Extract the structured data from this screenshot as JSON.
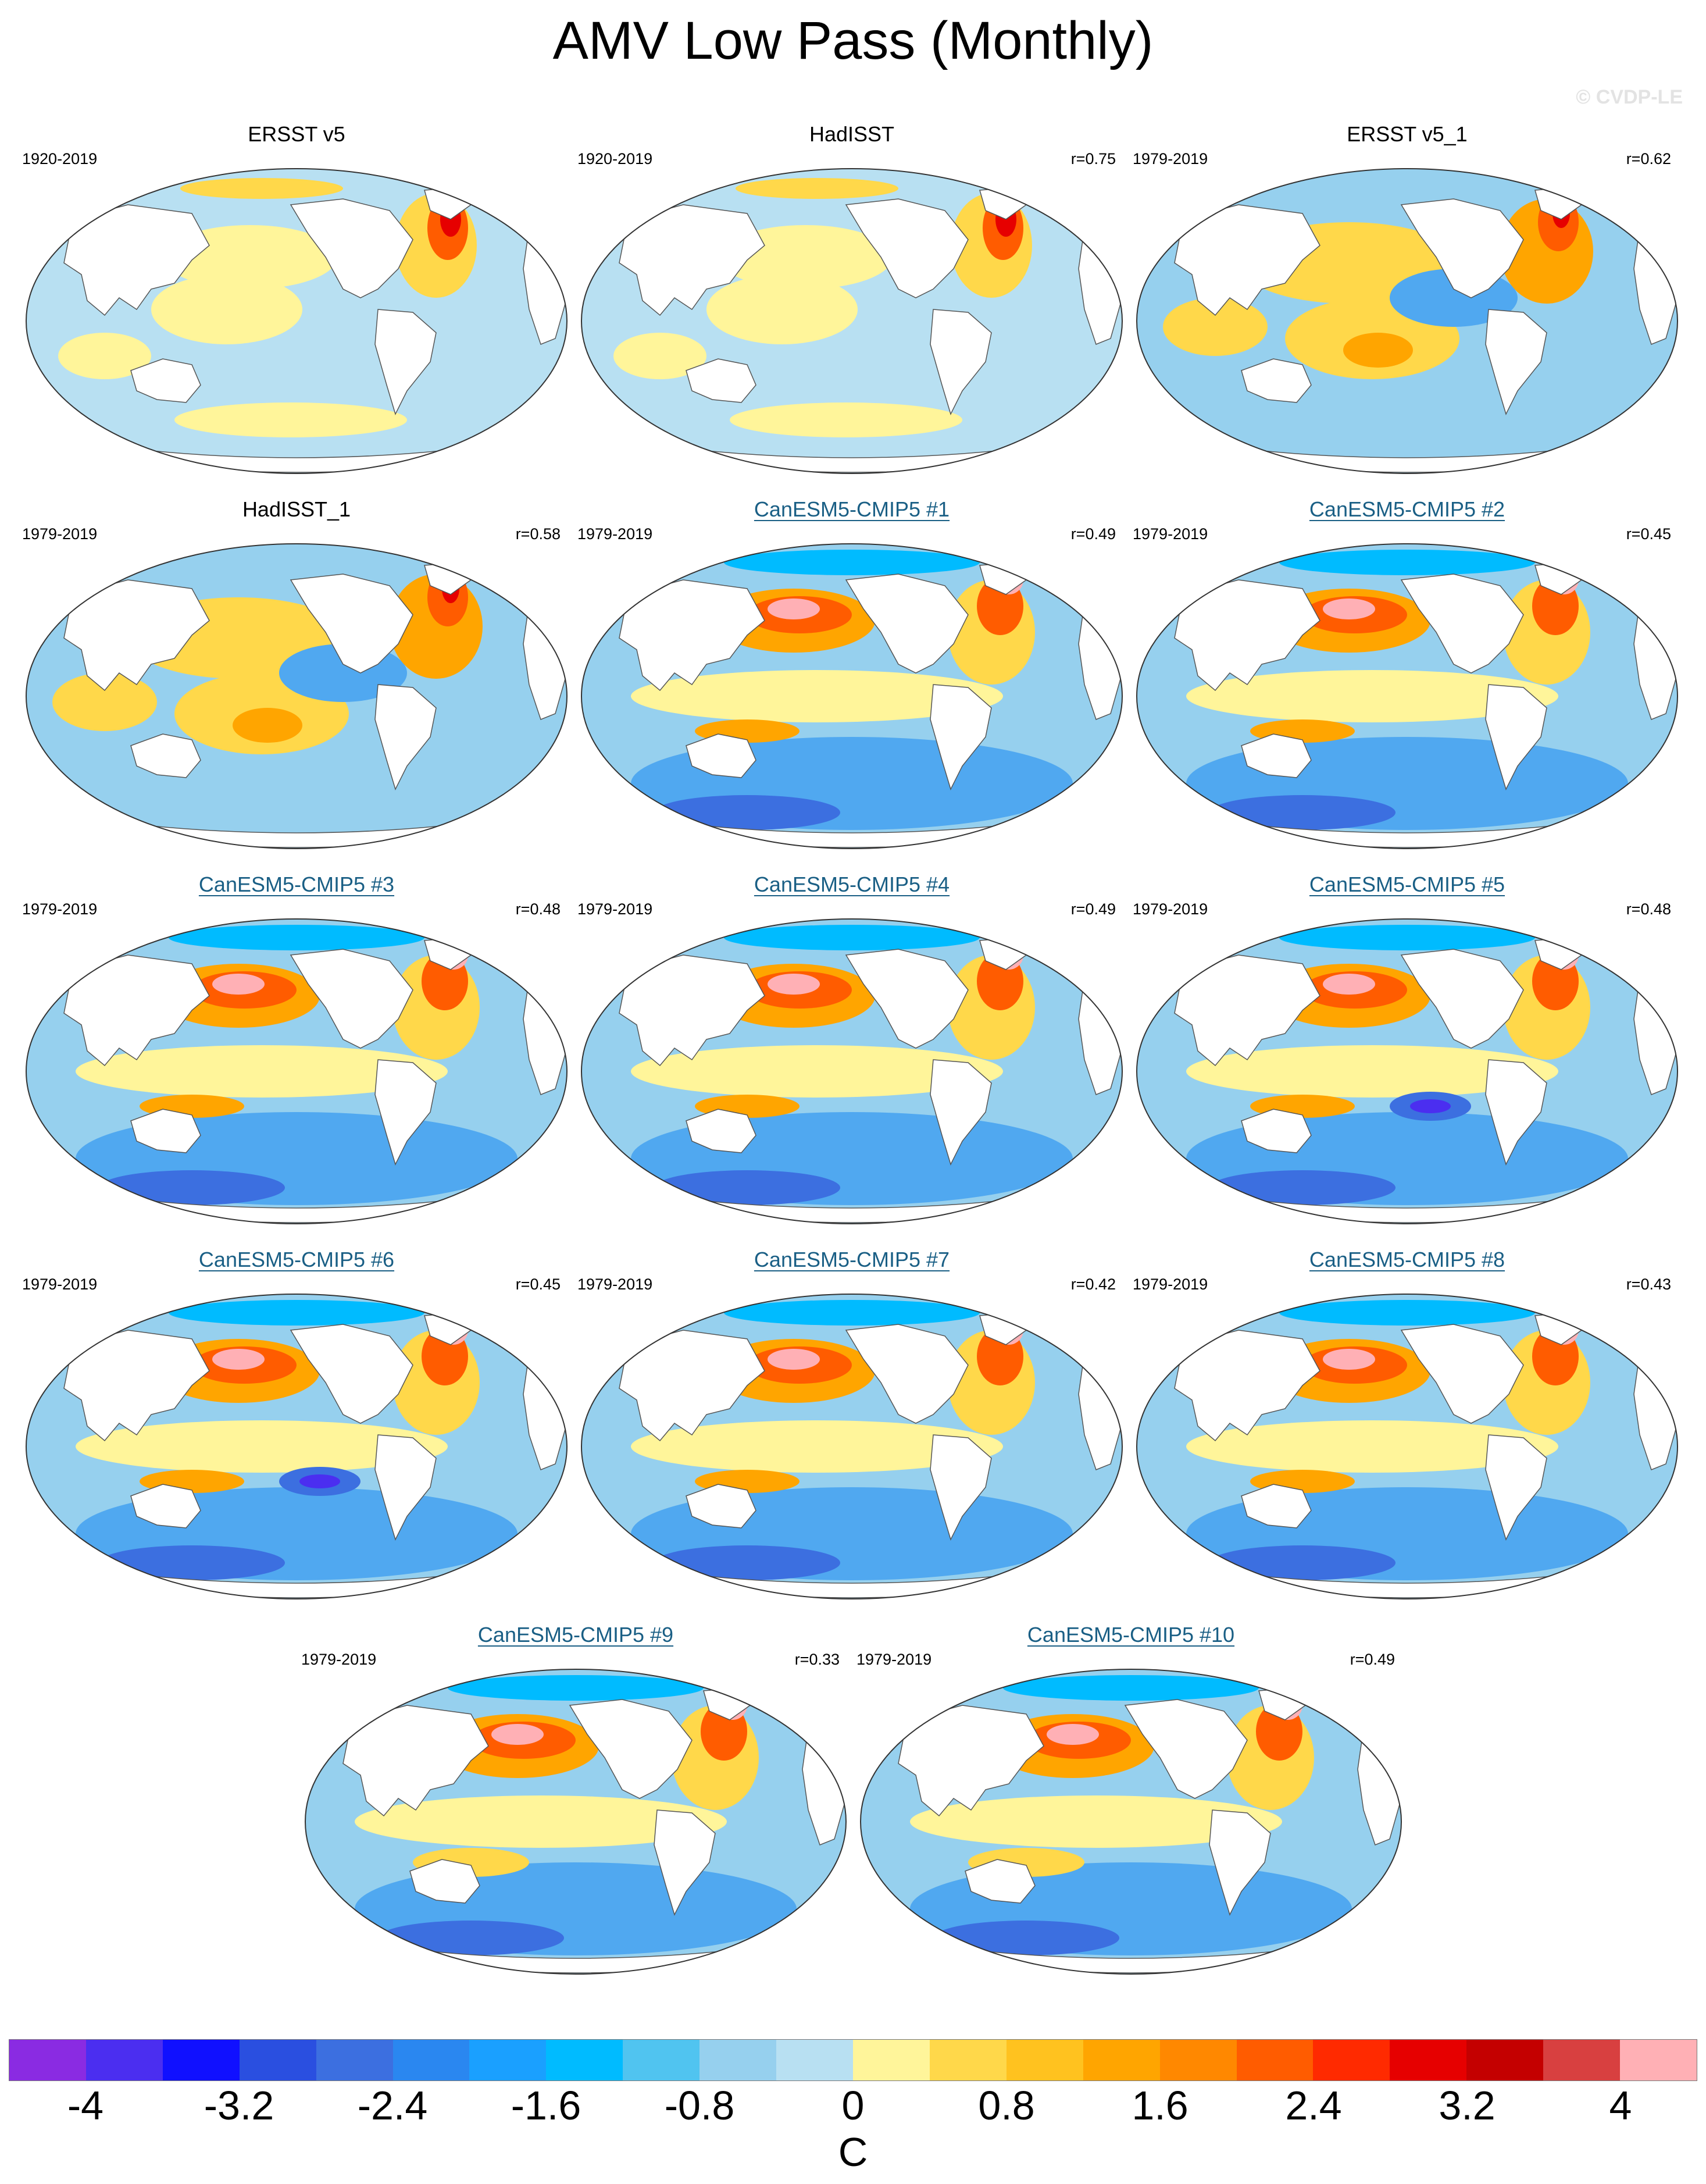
{
  "title": "AMV Low Pass (Monthly)",
  "watermark": "© CVDP-LE",
  "panels": [
    {
      "title": "ERSST v5",
      "period": "1920-2019",
      "r": "",
      "model": false,
      "pattern": "obs-long"
    },
    {
      "title": "HadISST",
      "period": "1920-2019",
      "r": "r=0.75",
      "model": false,
      "pattern": "obs-long-b"
    },
    {
      "title": "ERSST v5_1",
      "period": "1979-2019",
      "r": "r=0.62",
      "model": false,
      "pattern": "obs-recent"
    },
    {
      "title": "HadISST_1",
      "period": "1979-2019",
      "r": "r=0.58",
      "model": false,
      "pattern": "obs-recent"
    },
    {
      "title": "CanESM5-CMIP5 #1",
      "period": "1979-2019",
      "r": "r=0.49",
      "model": true,
      "pattern": "model"
    },
    {
      "title": "CanESM5-CMIP5 #2",
      "period": "1979-2019",
      "r": "r=0.45",
      "model": true,
      "pattern": "model"
    },
    {
      "title": "CanESM5-CMIP5 #3",
      "period": "1979-2019",
      "r": "r=0.48",
      "model": true,
      "pattern": "model"
    },
    {
      "title": "CanESM5-CMIP5 #4",
      "period": "1979-2019",
      "r": "r=0.49",
      "model": true,
      "pattern": "model"
    },
    {
      "title": "CanESM5-CMIP5 #5",
      "period": "1979-2019",
      "r": "r=0.48",
      "model": true,
      "pattern": "model-cold"
    },
    {
      "title": "CanESM5-CMIP5 #6",
      "period": "1979-2019",
      "r": "r=0.45",
      "model": true,
      "pattern": "model-cold"
    },
    {
      "title": "CanESM5-CMIP5 #7",
      "period": "1979-2019",
      "r": "r=0.42",
      "model": true,
      "pattern": "model"
    },
    {
      "title": "CanESM5-CMIP5 #8",
      "period": "1979-2019",
      "r": "r=0.43",
      "model": true,
      "pattern": "model"
    },
    {
      "title": "CanESM5-CMIP5 #9",
      "period": "1979-2019",
      "r": "r=0.33",
      "model": true,
      "pattern": "model-weak"
    },
    {
      "title": "CanESM5-CMIP5 #10",
      "period": "1979-2019",
      "r": "r=0.49",
      "model": true,
      "pattern": "model-weak"
    }
  ],
  "colorbar": {
    "unit": "C",
    "tick_labels": [
      "-4",
      "-3.2",
      "-2.4",
      "-1.6",
      "-0.8",
      "0",
      "0.8",
      "1.6",
      "2.4",
      "3.2",
      "4"
    ],
    "colors": [
      "#8a2be2",
      "#4b2ef0",
      "#1010ff",
      "#2a4fe0",
      "#3c6fe0",
      "#2a87f0",
      "#1aa0ff",
      "#00bbff",
      "#50c4f0",
      "#96d0ee",
      "#b8e0f2",
      "#fff59a",
      "#ffd84a",
      "#ffc21f",
      "#ffa500",
      "#ff8800",
      "#ff5c00",
      "#ff2a00",
      "#e60000",
      "#c40000",
      "#d84040",
      "#ffb0b5"
    ]
  },
  "field_colors": {
    "cold3": "#3c6fe0",
    "cold2": "#50a8f0",
    "cold1": "#96d0ee",
    "cool": "#b8e0f2",
    "warm1": "#fff59a",
    "warm2": "#ffd84a",
    "warm3": "#ffa500",
    "hot1": "#ff5c00",
    "hot2": "#e60000",
    "pink": "#ffb0b5",
    "purple": "#4b2ef0"
  }
}
